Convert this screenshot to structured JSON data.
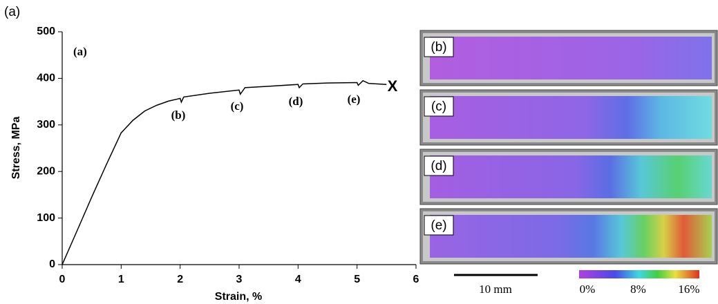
{
  "figure_label": "(a)",
  "chart_data": {
    "type": "line",
    "x_label": "Strain, %",
    "y_label": "Stress, MPa",
    "x": [
      0,
      0.25,
      0.5,
      0.75,
      1.0,
      1.2,
      1.4,
      1.6,
      1.8,
      2.0,
      2.02,
      2.06,
      2.5,
      3.0,
      3.02,
      3.1,
      3.5,
      4.0,
      4.02,
      4.08,
      4.5,
      5.0,
      5.02,
      5.1,
      5.2,
      5.5
    ],
    "values": [
      0,
      72,
      145,
      215,
      283,
      310,
      330,
      342,
      351,
      357,
      349,
      360,
      368,
      375,
      366,
      380,
      383,
      387,
      380,
      388,
      390,
      391,
      385,
      395,
      389,
      387
    ],
    "color": "#000000",
    "xlim": [
      0,
      6
    ],
    "xticks": [
      0,
      1,
      2,
      3,
      4,
      5,
      6
    ],
    "ylim": [
      0,
      500
    ],
    "yticks": [
      0,
      100,
      200,
      300,
      400,
      500
    ],
    "annotations": [
      "(a)",
      "(b)",
      "(c)",
      "(d)",
      "(e)",
      "X"
    ]
  },
  "images": {
    "panels": [
      "(b)",
      "(c)",
      "(d)",
      "(e)"
    ],
    "scale_bar": "10 mm",
    "colorbar": {
      "lim": [
        0,
        16
      ],
      "ticks": [
        {
          "value": 0,
          "label": "0%"
        },
        {
          "value": 8,
          "label": "8%"
        },
        {
          "value": 16,
          "label": "16%"
        }
      ]
    }
  }
}
